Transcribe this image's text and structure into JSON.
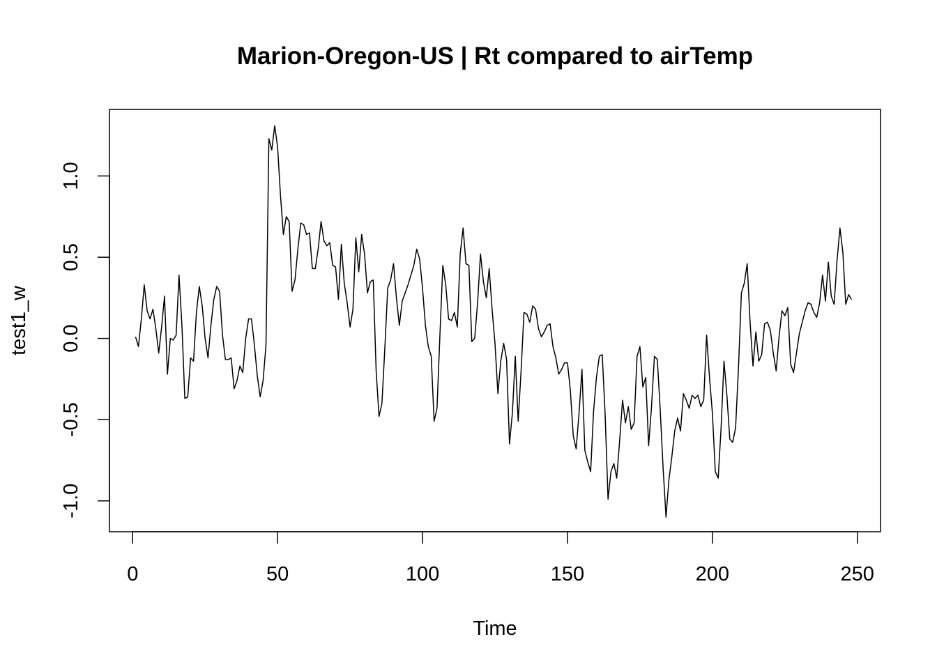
{
  "chart_data": {
    "type": "line",
    "title": "Marion-Oregon-US | Rt compared to airTemp",
    "xlabel": "Time",
    "ylabel": "test1_w",
    "xlim": [
      -8,
      258
    ],
    "ylim": [
      -1.19,
      1.41
    ],
    "x_ticks": [
      0,
      50,
      100,
      150,
      200,
      250
    ],
    "x_tick_labels": [
      "0",
      "50",
      "100",
      "150",
      "200",
      "250"
    ],
    "y_ticks": [
      -1.0,
      -0.5,
      0.0,
      0.5,
      1.0
    ],
    "y_tick_labels": [
      "-1.0",
      "-0.5",
      "0.0",
      "0.5",
      "1.0"
    ],
    "line_color": "#000000",
    "grid": false,
    "series": [
      {
        "name": "test1_w",
        "x_start": 1,
        "x_step": 1,
        "values": [
          0.01,
          -0.05,
          0.12,
          0.33,
          0.17,
          0.12,
          0.18,
          0.06,
          -0.09,
          0.07,
          0.26,
          -0.22,
          0.0,
          -0.01,
          0.02,
          0.39,
          0.08,
          -0.37,
          -0.36,
          -0.12,
          -0.14,
          0.16,
          0.32,
          0.2,
          0.0,
          -0.12,
          0.08,
          0.24,
          0.32,
          0.29,
          0.02,
          -0.13,
          -0.13,
          -0.12,
          -0.31,
          -0.26,
          -0.17,
          -0.21,
          0.0,
          0.12,
          0.12,
          -0.04,
          -0.23,
          -0.36,
          -0.26,
          -0.04,
          1.23,
          1.16,
          1.31,
          1.18,
          0.88,
          0.64,
          0.75,
          0.72,
          0.29,
          0.36,
          0.55,
          0.71,
          0.7,
          0.64,
          0.65,
          0.43,
          0.43,
          0.55,
          0.72,
          0.6,
          0.57,
          0.59,
          0.45,
          0.44,
          0.24,
          0.58,
          0.34,
          0.22,
          0.07,
          0.18,
          0.62,
          0.41,
          0.64,
          0.52,
          0.28,
          0.35,
          0.36,
          -0.2,
          -0.48,
          -0.4,
          -0.06,
          0.31,
          0.36,
          0.46,
          0.25,
          0.08,
          0.23,
          0.28,
          0.33,
          0.39,
          0.45,
          0.55,
          0.49,
          0.31,
          0.08,
          -0.05,
          -0.11,
          -0.51,
          -0.43,
          0.02,
          0.45,
          0.33,
          0.12,
          0.11,
          0.16,
          0.07,
          0.52,
          0.68,
          0.46,
          0.45,
          -0.02,
          0.0,
          0.22,
          0.52,
          0.35,
          0.25,
          0.43,
          0.18,
          -0.03,
          -0.34,
          -0.14,
          -0.03,
          -0.13,
          -0.65,
          -0.46,
          -0.11,
          -0.51,
          -0.2,
          0.16,
          0.15,
          0.1,
          0.2,
          0.18,
          0.06,
          0.01,
          0.04,
          0.08,
          0.09,
          -0.05,
          -0.12,
          -0.22,
          -0.19,
          -0.15,
          -0.15,
          -0.32,
          -0.6,
          -0.68,
          -0.46,
          -0.19,
          -0.69,
          -0.76,
          -0.82,
          -0.45,
          -0.24,
          -0.11,
          -0.1,
          -0.47,
          -0.99,
          -0.82,
          -0.77,
          -0.86,
          -0.63,
          -0.38,
          -0.52,
          -0.42,
          -0.56,
          -0.52,
          -0.11,
          -0.05,
          -0.3,
          -0.24,
          -0.66,
          -0.42,
          -0.11,
          -0.13,
          -0.44,
          -0.8,
          -1.1,
          -0.87,
          -0.73,
          -0.57,
          -0.49,
          -0.57,
          -0.34,
          -0.38,
          -0.43,
          -0.35,
          -0.37,
          -0.35,
          -0.42,
          -0.38,
          0.02,
          -0.24,
          -0.46,
          -0.82,
          -0.86,
          -0.55,
          -0.14,
          -0.35,
          -0.62,
          -0.64,
          -0.55,
          -0.18,
          0.28,
          0.34,
          0.46,
          0.1,
          -0.17,
          0.04,
          -0.14,
          -0.1,
          0.09,
          0.1,
          0.05,
          -0.09,
          -0.2,
          0.01,
          0.17,
          0.14,
          0.19,
          -0.16,
          -0.21,
          -0.09,
          0.03,
          0.1,
          0.17,
          0.22,
          0.21,
          0.16,
          0.13,
          0.22,
          0.39,
          0.23,
          0.47,
          0.26,
          0.21,
          0.48,
          0.68,
          0.53,
          0.21,
          0.27,
          0.24
        ]
      }
    ]
  }
}
